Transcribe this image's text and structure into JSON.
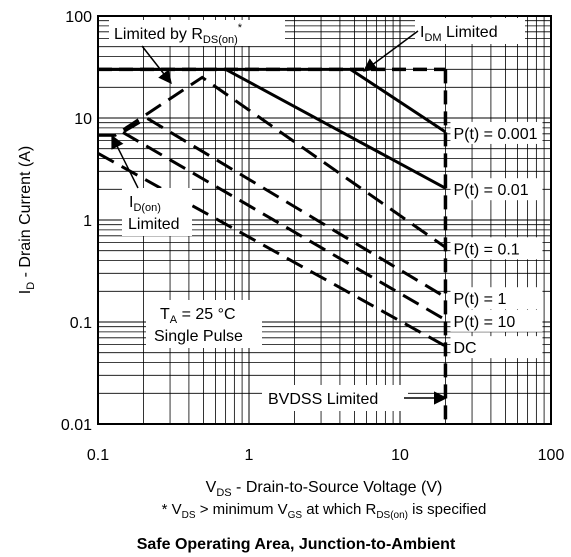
{
  "chart_data": {
    "type": "line",
    "title": "Safe Operating Area, Junction-to-Ambient",
    "xlabel": {
      "main": "V",
      "sub": "DS",
      "rest": " - Drain-to-Source Voltage (V)"
    },
    "footnote": {
      "star": "* V",
      "sub1": "DS",
      "mid": " > minimum V",
      "sub2": "GS",
      "mid2": " at which R",
      "sub3": "DS(on)",
      "end": " is specified"
    },
    "ylabel": {
      "main": "I",
      "sub": "D",
      "rest": " - Drain Current (A)"
    },
    "x_scale": "log",
    "y_scale": "log",
    "xlim": [
      0.1,
      100
    ],
    "ylim": [
      0.01,
      100
    ],
    "grid": true,
    "x_ticks": [
      {
        "v": 0.1,
        "label": "0.1"
      },
      {
        "v": 1,
        "label": "1"
      },
      {
        "v": 10,
        "label": "10"
      },
      {
        "v": 100,
        "label": "100"
      }
    ],
    "y_ticks": [
      {
        "v": 0.01,
        "label": "0.01"
      },
      {
        "v": 0.1,
        "label": "0.1"
      },
      {
        "v": 1,
        "label": "1"
      },
      {
        "v": 10,
        "label": "10"
      },
      {
        "v": 100,
        "label": "100"
      }
    ],
    "series": [
      {
        "name": "P(t) = 0.001",
        "dashed": false,
        "points": [
          [
            0.1,
            30
          ],
          [
            4.7,
            30
          ],
          [
            20,
            7.3
          ]
        ]
      },
      {
        "name": "P(t) = 0.01",
        "dashed": false,
        "points": [
          [
            0.1,
            30
          ],
          [
            0.48,
            30
          ],
          [
            0.7,
            30
          ],
          [
            20,
            2.05
          ]
        ]
      },
      {
        "name": "P(t) = 0.1",
        "dashed": true,
        "points": [
          [
            0.1,
            6.8
          ],
          [
            0.13,
            6.8
          ],
          [
            0.49,
            25
          ],
          [
            20,
            0.54
          ]
        ]
      },
      {
        "name": "P(t) = 1",
        "dashed": true,
        "points": [
          [
            0.1,
            6.8
          ],
          [
            0.13,
            6.8
          ],
          [
            0.14,
            7.0
          ],
          [
            0.21,
            10
          ],
          [
            20,
            0.175
          ]
        ]
      },
      {
        "name": "P(t) = 10",
        "dashed": true,
        "points": [
          [
            0.1,
            6.8
          ],
          [
            0.13,
            6.8
          ],
          [
            0.14,
            7.5
          ],
          [
            20,
            0.105
          ]
        ]
      },
      {
        "name": "DC",
        "dashed": true,
        "points": [
          [
            0.1,
            4.5
          ],
          [
            20,
            0.058
          ]
        ]
      }
    ],
    "boundaries": [
      {
        "name": "IDM limit",
        "points": [
          [
            0.1,
            30
          ],
          [
            20,
            30
          ]
        ]
      },
      {
        "name": "BVDSS limit",
        "points": [
          [
            20,
            30
          ],
          [
            20,
            0.01
          ]
        ]
      }
    ],
    "annotations": {
      "rds": {
        "main": "Limited by R",
        "sub": "DS(on)",
        "sup": "*"
      },
      "idm": {
        "main": "I",
        "sub": "DM",
        "rest": " Limited"
      },
      "idon": {
        "main": "I",
        "sub": "D(on)",
        "line2": "Limited"
      },
      "ta": {
        "main": "T",
        "sub": "A",
        "rest": " = 25 °C",
        "line2": "Single Pulse"
      },
      "bvdss": "BVDSS  Limited"
    }
  }
}
